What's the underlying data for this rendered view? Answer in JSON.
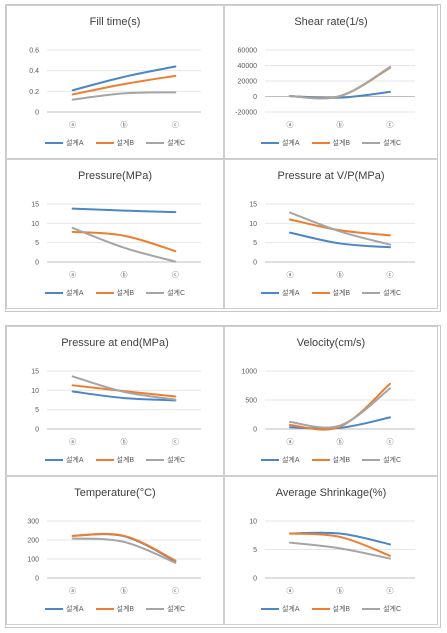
{
  "series_names": [
    "설계A",
    "설계B",
    "설계C"
  ],
  "series_colors": [
    "#4a86c8",
    "#ed7d31",
    "#a5a5a5"
  ],
  "chart_data": [
    {
      "type": "line",
      "title": "Fill time(s)",
      "categories": [
        "ⓐ",
        "ⓑ",
        "ⓒ"
      ],
      "yticks": [
        "0",
        "0.2",
        "0.4",
        "0.6"
      ],
      "ylim": [
        0,
        0.6
      ],
      "series": [
        {
          "name": "설계A",
          "values": [
            0.21,
            0.34,
            0.44
          ]
        },
        {
          "name": "설계B",
          "values": [
            0.17,
            0.27,
            0.35
          ]
        },
        {
          "name": "설계C",
          "values": [
            0.12,
            0.18,
            0.19
          ]
        }
      ]
    },
    {
      "type": "line",
      "title": "Shear rate(1/s)",
      "categories": [
        "ⓐ",
        "ⓑ",
        "ⓒ"
      ],
      "yticks": [
        "-20000",
        "0",
        "20000",
        "40000",
        "60000"
      ],
      "ylim": [
        -20000,
        60000
      ],
      "series": [
        {
          "name": "설계A",
          "values": [
            500,
            -1500,
            6000
          ]
        },
        {
          "name": "설계B",
          "values": [
            500,
            500,
            37000
          ]
        },
        {
          "name": "설계C",
          "values": [
            500,
            500,
            38000
          ]
        }
      ]
    },
    {
      "type": "line",
      "title": "Pressure(MPa)",
      "categories": [
        "ⓐ",
        "ⓑ",
        "ⓒ"
      ],
      "yticks": [
        "0",
        "5",
        "10",
        "15"
      ],
      "ylim": [
        0,
        15
      ],
      "series": [
        {
          "name": "설계A",
          "values": [
            13.8,
            13.3,
            12.9
          ]
        },
        {
          "name": "설계B",
          "values": [
            7.8,
            6.8,
            2.8
          ]
        },
        {
          "name": "설계C",
          "values": [
            8.8,
            3.7,
            0.1
          ]
        }
      ]
    },
    {
      "type": "line",
      "title": "Pressure at V/P(MPa)",
      "categories": [
        "ⓐ",
        "ⓑ",
        "ⓒ"
      ],
      "yticks": [
        "0",
        "5",
        "10",
        "15"
      ],
      "ylim": [
        0,
        15
      ],
      "series": [
        {
          "name": "설계A",
          "values": [
            7.6,
            4.8,
            3.8
          ]
        },
        {
          "name": "설계B",
          "values": [
            11.0,
            8.2,
            6.9
          ]
        },
        {
          "name": "설계C",
          "values": [
            12.8,
            7.9,
            4.5
          ]
        }
      ]
    },
    {
      "type": "line",
      "title": "Pressure at end(MPa)",
      "categories": [
        "ⓐ",
        "ⓑ",
        "ⓒ"
      ],
      "yticks": [
        "0",
        "5",
        "10",
        "15"
      ],
      "ylim": [
        0,
        15
      ],
      "series": [
        {
          "name": "설계A",
          "values": [
            9.7,
            8.0,
            7.4
          ]
        },
        {
          "name": "설계B",
          "values": [
            11.3,
            9.8,
            8.4
          ]
        },
        {
          "name": "설계C",
          "values": [
            13.6,
            9.6,
            7.6
          ]
        }
      ]
    },
    {
      "type": "line",
      "title": "Velocity(cm/s)",
      "categories": [
        "ⓐ",
        "ⓑ",
        "ⓒ"
      ],
      "yticks": [
        "0",
        "500",
        "1000"
      ],
      "ylim": [
        0,
        1000
      ],
      "series": [
        {
          "name": "설계A",
          "values": [
            30,
            20,
            200
          ]
        },
        {
          "name": "설계B",
          "values": [
            70,
            40,
            780
          ]
        },
        {
          "name": "설계C",
          "values": [
            120,
            60,
            700
          ]
        }
      ]
    },
    {
      "type": "line",
      "title": "Temperature(°C)",
      "categories": [
        "ⓐ",
        "ⓑ",
        "ⓒ"
      ],
      "yticks": [
        "0",
        "100",
        "200",
        "300"
      ],
      "ylim": [
        0,
        300
      ],
      "series": [
        {
          "name": "설계A",
          "values": [
            222,
            220,
            88
          ]
        },
        {
          "name": "설계B",
          "values": [
            222,
            222,
            92
          ]
        },
        {
          "name": "설계C",
          "values": [
            208,
            190,
            80
          ]
        }
      ]
    },
    {
      "type": "line",
      "title": "Average Shrinkage(%)",
      "categories": [
        "ⓐ",
        "ⓑ",
        "ⓒ"
      ],
      "yticks": [
        "0",
        "5",
        "10"
      ],
      "ylim": [
        0,
        10
      ],
      "series": [
        {
          "name": "설계A",
          "values": [
            7.8,
            7.8,
            5.9
          ]
        },
        {
          "name": "설계B",
          "values": [
            7.8,
            7.2,
            3.9
          ]
        },
        {
          "name": "설계C",
          "values": [
            6.2,
            5.2,
            3.4
          ]
        }
      ]
    }
  ]
}
